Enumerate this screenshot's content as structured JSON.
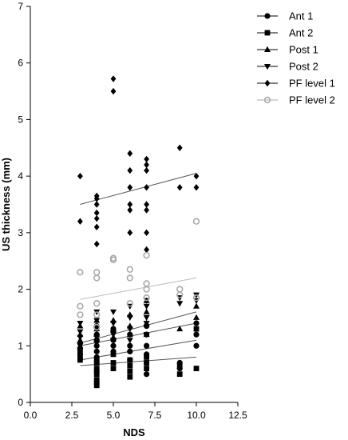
{
  "chart_data": {
    "type": "scatter",
    "xlabel": "NDS",
    "ylabel": "US thickness (mm)",
    "xlim": [
      0,
      12.5
    ],
    "ylim": [
      0,
      7
    ],
    "x_ticks": [
      "0.0",
      "2.5",
      "5.0",
      "7.5",
      "10.0",
      "12.5"
    ],
    "y_ticks": [
      "0",
      "1",
      "2",
      "3",
      "4",
      "5",
      "6",
      "7"
    ],
    "legend_position": "top-right",
    "series": [
      {
        "name": "Ant 1",
        "marker": "circle",
        "color": "#000000",
        "points": [
          [
            3,
            0.85
          ],
          [
            3,
            0.95
          ],
          [
            3,
            1.05
          ],
          [
            4,
            0.8
          ],
          [
            4,
            0.9
          ],
          [
            4,
            1.0
          ],
          [
            4,
            1.1
          ],
          [
            4,
            1.2
          ],
          [
            4,
            1.35
          ],
          [
            5,
            0.9
          ],
          [
            5,
            1.0
          ],
          [
            5,
            1.1
          ],
          [
            5,
            1.25
          ],
          [
            5,
            1.3
          ],
          [
            6,
            0.75
          ],
          [
            6,
            0.9
          ],
          [
            6,
            1.0
          ],
          [
            6,
            1.2
          ],
          [
            7,
            0.5
          ],
          [
            7,
            0.7
          ],
          [
            7,
            0.85
          ],
          [
            7,
            1.0
          ],
          [
            7,
            1.2
          ],
          [
            7,
            1.35
          ],
          [
            9,
            0.6
          ],
          [
            9,
            0.7
          ],
          [
            10,
            1.0
          ],
          [
            10,
            1.2
          ],
          [
            10,
            1.4
          ]
        ],
        "trend": [
          [
            3,
            0.75
          ],
          [
            10,
            1.1
          ]
        ]
      },
      {
        "name": "Ant 2",
        "marker": "square",
        "color": "#000000",
        "points": [
          [
            3,
            0.75
          ],
          [
            3,
            0.8
          ],
          [
            3,
            0.9
          ],
          [
            4,
            0.3
          ],
          [
            4,
            0.35
          ],
          [
            4,
            0.4
          ],
          [
            4,
            0.5
          ],
          [
            4,
            0.55
          ],
          [
            4,
            0.6
          ],
          [
            4,
            0.7
          ],
          [
            4,
            0.75
          ],
          [
            5,
            0.6
          ],
          [
            5,
            0.7
          ],
          [
            5,
            0.85
          ],
          [
            6,
            0.45
          ],
          [
            6,
            0.55
          ],
          [
            6,
            0.65
          ],
          [
            6,
            0.75
          ],
          [
            7,
            0.6
          ],
          [
            7,
            0.7
          ],
          [
            7,
            0.8
          ],
          [
            9,
            0.5
          ],
          [
            9,
            0.65
          ],
          [
            10,
            0.6
          ],
          [
            10,
            1.3
          ]
        ],
        "trend": [
          [
            3,
            0.65
          ],
          [
            10,
            0.8
          ]
        ]
      },
      {
        "name": "Post 1",
        "marker": "triangle-up",
        "color": "#000000",
        "points": [
          [
            3,
            1.0
          ],
          [
            3,
            1.1
          ],
          [
            3,
            1.2
          ],
          [
            3,
            1.35
          ],
          [
            4,
            1.1
          ],
          [
            4,
            1.2
          ],
          [
            4,
            1.3
          ],
          [
            4,
            1.45
          ],
          [
            5,
            1.15
          ],
          [
            5,
            1.3
          ],
          [
            5,
            1.45
          ],
          [
            6,
            1.2
          ],
          [
            6,
            1.35
          ],
          [
            6,
            1.55
          ],
          [
            7,
            1.2
          ],
          [
            7,
            1.4
          ],
          [
            7,
            1.6
          ],
          [
            7,
            1.8
          ],
          [
            9,
            1.3
          ],
          [
            10,
            1.5
          ],
          [
            10,
            1.7
          ]
        ],
        "trend": [
          [
            3,
            1.0
          ],
          [
            10,
            1.4
          ]
        ]
      },
      {
        "name": "Post 2",
        "marker": "triangle-down",
        "color": "#000000",
        "points": [
          [
            3,
            1.0
          ],
          [
            3,
            1.15
          ],
          [
            3,
            1.25
          ],
          [
            3,
            1.4
          ],
          [
            4,
            1.05
          ],
          [
            4,
            1.15
          ],
          [
            4,
            1.3
          ],
          [
            4,
            1.45
          ],
          [
            4,
            1.6
          ],
          [
            5,
            1.1
          ],
          [
            5,
            1.2
          ],
          [
            5,
            1.4
          ],
          [
            5,
            1.6
          ],
          [
            6,
            1.1
          ],
          [
            6,
            1.3
          ],
          [
            6,
            1.5
          ],
          [
            6,
            1.7
          ],
          [
            7,
            1.2
          ],
          [
            7,
            1.4
          ],
          [
            7,
            1.5
          ],
          [
            7,
            1.7
          ],
          [
            7,
            1.8
          ],
          [
            9,
            1.75
          ],
          [
            9,
            1.85
          ],
          [
            10,
            1.8
          ],
          [
            10,
            1.9
          ]
        ],
        "trend": [
          [
            3,
            1.05
          ],
          [
            10,
            1.6
          ]
        ]
      },
      {
        "name": "PF level 1",
        "marker": "diamond",
        "color": "#000000",
        "points": [
          [
            3,
            3.2
          ],
          [
            3,
            4.0
          ],
          [
            4,
            2.8
          ],
          [
            4,
            3.1
          ],
          [
            4,
            3.25
          ],
          [
            4,
            3.35
          ],
          [
            4,
            3.5
          ],
          [
            4,
            3.6
          ],
          [
            4,
            3.65
          ],
          [
            5,
            5.5
          ],
          [
            5,
            5.72
          ],
          [
            6,
            3.0
          ],
          [
            6,
            3.4
          ],
          [
            6,
            3.5
          ],
          [
            6,
            3.8
          ],
          [
            6,
            4.1
          ],
          [
            6,
            4.4
          ],
          [
            7,
            2.7
          ],
          [
            7,
            3.0
          ],
          [
            7,
            3.4
          ],
          [
            7,
            3.5
          ],
          [
            7,
            3.8
          ],
          [
            7,
            4.1
          ],
          [
            7,
            4.2
          ],
          [
            7,
            4.3
          ],
          [
            9,
            3.8
          ],
          [
            9,
            4.5
          ],
          [
            10,
            3.8
          ],
          [
            10,
            4.0
          ]
        ],
        "trend": [
          [
            3,
            3.5
          ],
          [
            10,
            4.05
          ]
        ]
      },
      {
        "name": "PF level 2",
        "marker": "circle-open",
        "color": "#aaaaaa",
        "points": [
          [
            3,
            1.55
          ],
          [
            3,
            1.7
          ],
          [
            3,
            2.3
          ],
          [
            4,
            1.33
          ],
          [
            4,
            1.55
          ],
          [
            4,
            1.75
          ],
          [
            4,
            2.2
          ],
          [
            4,
            2.3
          ],
          [
            5,
            2.52
          ],
          [
            5,
            2.55
          ],
          [
            6,
            1.75
          ],
          [
            6,
            2.2
          ],
          [
            6,
            2.35
          ],
          [
            7,
            1.85
          ],
          [
            7,
            2.0
          ],
          [
            7,
            2.1
          ],
          [
            7,
            2.6
          ],
          [
            9,
            1.9
          ],
          [
            9,
            2.0
          ],
          [
            10,
            1.85
          ],
          [
            10,
            3.2
          ]
        ],
        "trend": [
          [
            3,
            1.82
          ],
          [
            10,
            2.2
          ]
        ]
      }
    ]
  }
}
